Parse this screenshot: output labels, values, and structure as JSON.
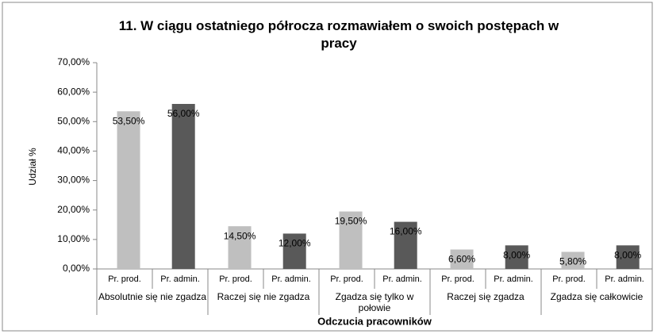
{
  "chart_data": {
    "type": "bar",
    "title": "11. W ciągu ostatniego półrocza rozmawiałem o swoich postępach w pracy",
    "xlabel": "Odczucia pracowników",
    "ylabel": "Udział %",
    "categories": [
      "Absolutnie się nie zgadza",
      "Raczej się nie zgadza",
      "Zgadza się tylko w połowie",
      "Raczej się zgadza",
      "Zgadza się całkowicie"
    ],
    "series": [
      {
        "name": "Pr. prod.",
        "color": "#bfbfbf",
        "values": [
          53.5,
          14.5,
          19.5,
          6.6,
          5.8
        ],
        "value_labels": [
          "53,50%",
          "14,50%",
          "19,50%",
          "6,60%",
          "5,80%"
        ]
      },
      {
        "name": "Pr. admin.",
        "color": "#595959",
        "values": [
          56,
          12,
          16,
          8,
          8
        ],
        "value_labels": [
          "56,00%",
          "12,00%",
          "16,00%",
          "8,00%",
          "8,00%"
        ]
      }
    ],
    "ylim": [
      0,
      70
    ],
    "yticks": [
      {
        "value": 0,
        "label": "0,00%"
      },
      {
        "value": 10,
        "label": "10,00%"
      },
      {
        "value": 20,
        "label": "20,00%"
      },
      {
        "value": 30,
        "label": "30,00%"
      },
      {
        "value": 40,
        "label": "40,00%"
      },
      {
        "value": 50,
        "label": "50,00%"
      },
      {
        "value": 60,
        "label": "60,00%"
      },
      {
        "value": 70,
        "label": "70,00%"
      }
    ],
    "grid": false
  }
}
